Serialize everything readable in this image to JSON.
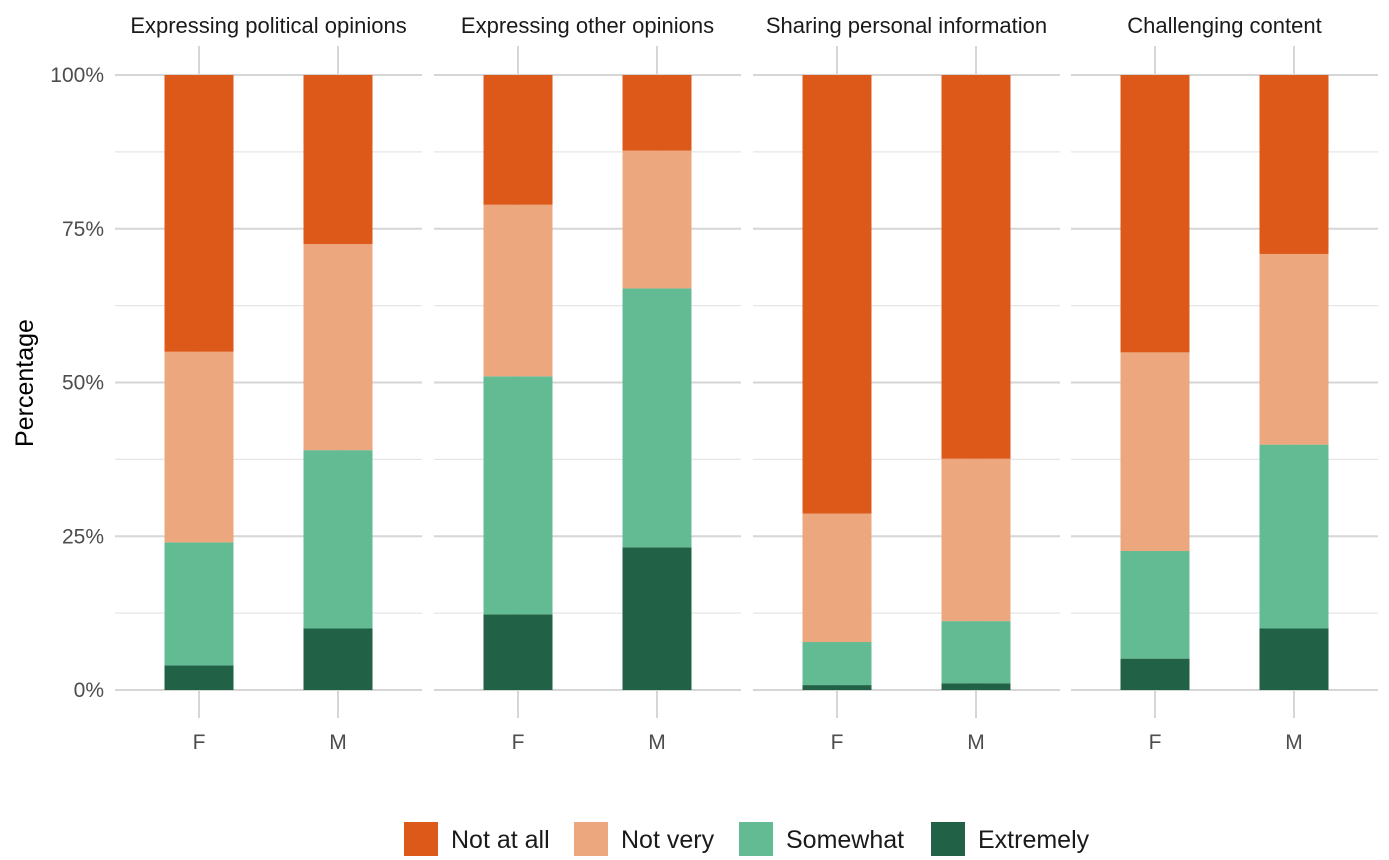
{
  "chart_data": {
    "type": "bar",
    "stacked": true,
    "ylabel": "Percentage",
    "xlabel": "",
    "ylim": [
      0,
      100
    ],
    "yticks": [
      0,
      25,
      50,
      75,
      100
    ],
    "ytick_labels": [
      "0%",
      "25%",
      "50%",
      "75%",
      "100%"
    ],
    "categories": [
      "F",
      "M"
    ],
    "stack_order": [
      "Extremely",
      "Somewhat",
      "Not very",
      "Not at all"
    ],
    "legend": {
      "position": "bottom",
      "entries": [
        "Not at all",
        "Not very",
        "Somewhat",
        "Extremely"
      ]
    },
    "colors": {
      "Not at all": "#dd5919",
      "Not very": "#eca77e",
      "Somewhat": "#63bb94",
      "Extremely": "#216246"
    },
    "facets": [
      {
        "title": "Expressing political opinions",
        "series": [
          {
            "name": "Extremely",
            "values": [
              4,
              10
            ]
          },
          {
            "name": "Somewhat",
            "values": [
              20,
              29
            ]
          },
          {
            "name": "Not very",
            "values": [
              31,
              33.5
            ]
          },
          {
            "name": "Not at all",
            "values": [
              45,
              27.5
            ]
          }
        ]
      },
      {
        "title": "Expressing other opinions",
        "series": [
          {
            "name": "Extremely",
            "values": [
              12.3,
              23.2
            ]
          },
          {
            "name": "Somewhat",
            "values": [
              38.7,
              42.1
            ]
          },
          {
            "name": "Not very",
            "values": [
              27.9,
              22.4
            ]
          },
          {
            "name": "Not at all",
            "values": [
              21.1,
              12.3
            ]
          }
        ]
      },
      {
        "title": "Sharing personal information",
        "series": [
          {
            "name": "Extremely",
            "values": [
              0.8,
              1.1
            ]
          },
          {
            "name": "Somewhat",
            "values": [
              7,
              10.1
            ]
          },
          {
            "name": "Not very",
            "values": [
              20.9,
              26.4
            ]
          },
          {
            "name": "Not at all",
            "values": [
              71.3,
              62.4
            ]
          }
        ]
      },
      {
        "title": "Challenging content",
        "series": [
          {
            "name": "Extremely",
            "values": [
              5.1,
              10
            ]
          },
          {
            "name": "Somewhat",
            "values": [
              17.5,
              29.9
            ]
          },
          {
            "name": "Not very",
            "values": [
              32.3,
              31
            ]
          },
          {
            "name": "Not at all",
            "values": [
              45.1,
              29.1
            ]
          }
        ]
      }
    ]
  }
}
